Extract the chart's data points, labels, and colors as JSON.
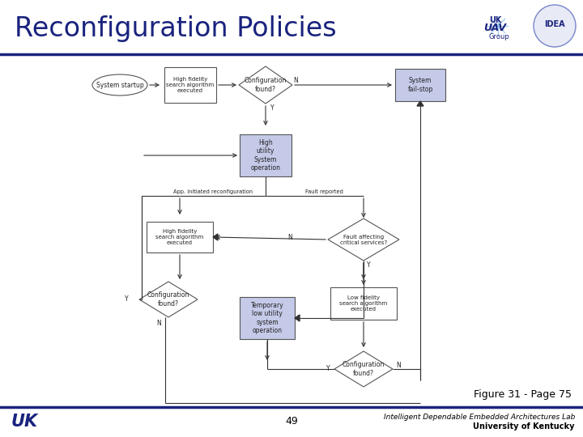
{
  "title": "Reconfiguration Policies",
  "title_color": "#1a237e",
  "background_color": "#ffffff",
  "footer_center": "49",
  "footer_right_line1": "Intelligent Dependable Embedded Architectures Lab",
  "footer_right_line2": "University of Kentucky",
  "figure_caption": "Figure 31 - Page 75",
  "header_line_color": "#1a237e",
  "box_fill_blue": "#c5cae9",
  "box_fill_white": "#ffffff",
  "box_edge_color": "#555555",
  "diamond_fill": "#ffffff",
  "diamond_edge": "#555555",
  "oval_fill": "#ffffff",
  "oval_edge": "#555555",
  "arrow_color": "#333333",
  "lw": 0.8
}
